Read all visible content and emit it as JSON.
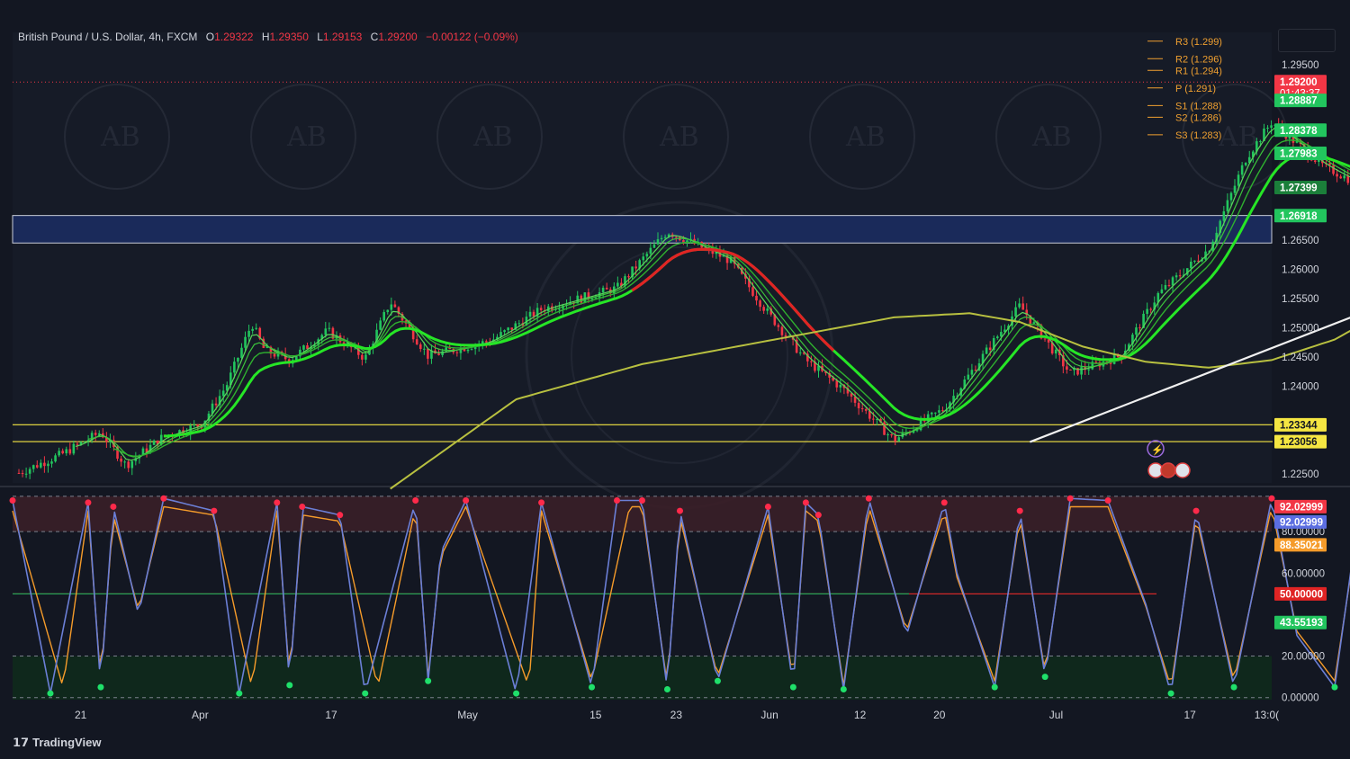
{
  "header": {
    "symbol": "British Pound / U.S. Dollar, 4h, FXCM",
    "open_label": "O",
    "open": "1.29322",
    "high_label": "H",
    "high": "1.29350",
    "low_label": "L",
    "low": "1.29153",
    "close_label": "C",
    "close": "1.29200",
    "change": "−0.00122 (−0.09%)"
  },
  "branding": "TradingView",
  "colors": {
    "bg": "#131722",
    "down": "#f23645",
    "up": "#22c55e",
    "zone": "#1a2a5a",
    "ema_green": "#26e626",
    "ema_red": "#e02424",
    "ma_slow": "#b8c040",
    "pivot": "#f0a030",
    "stoch_k": "#6b7fd6",
    "stoch_d": "#f59b2a"
  },
  "chart_data": [
    {
      "type": "line",
      "title": "British Pound / U.S. Dollar, 4h, FXCM",
      "x_ticks": [
        "21",
        "Apr",
        "17",
        "May",
        "15",
        "23",
        "Jun",
        "12",
        "20",
        "Jul",
        "17",
        "13:0("
      ],
      "y_ticks": [
        "1.29500",
        "1.26500",
        "1.26000",
        "1.25500",
        "1.25000",
        "1.24500",
        "1.24000",
        "1.22500"
      ],
      "ylim": [
        1.2235,
        1.3005
      ],
      "series": [
        {
          "role": "price",
          "x": [
            0.005,
            0.04,
            0.07,
            0.09,
            0.12,
            0.15,
            0.17,
            0.19,
            0.2,
            0.22,
            0.25,
            0.28,
            0.3,
            0.33,
            0.38,
            0.42,
            0.48,
            0.52,
            0.57,
            0.6,
            0.63,
            0.66,
            0.7,
            0.74,
            0.8,
            0.84,
            0.88,
            0.91,
            0.95,
            0.98,
            1.0,
            1.04,
            1.07,
            1.1,
            1.14,
            1.18,
            1.22,
            1.26,
            1.27,
            1.28
          ],
          "values": [
            1.2252,
            1.2285,
            1.2322,
            1.2265,
            1.2315,
            1.2335,
            1.2402,
            1.2508,
            1.2462,
            1.2445,
            1.2495,
            1.2448,
            1.2545,
            1.2452,
            1.2478,
            1.2532,
            1.2568,
            1.2665,
            1.2615,
            1.2525,
            1.2445,
            1.2395,
            1.2308,
            1.2362,
            1.2538,
            1.2422,
            1.2452,
            1.2558,
            1.2635,
            1.2792,
            1.2852,
            1.2778,
            1.2745,
            1.2758,
            1.2612,
            1.2705,
            1.2778,
            1.2898,
            1.2955,
            1.292
          ]
        },
        {
          "role": "ma-slow",
          "x": [
            0.3,
            0.4,
            0.5,
            0.6,
            0.7,
            0.76,
            0.8,
            0.85,
            0.9,
            0.95,
            1.0,
            1.05,
            1.1,
            1.15,
            1.2,
            1.3
          ],
          "values": [
            1.2225,
            1.2378,
            1.2438,
            1.2478,
            1.2518,
            1.2525,
            1.251,
            1.2468,
            1.2442,
            1.2432,
            1.2445,
            1.248,
            1.254,
            1.263,
            1.269,
            1.274
          ]
        }
      ],
      "horizontal_levels": [
        1.292,
        1.28887,
        1.28378,
        1.27983,
        1.27399,
        1.26918,
        1.23344,
        1.23056
      ],
      "price_labels": [
        {
          "text": "1.29200",
          "sub": "01:43:37",
          "color": "#f23645"
        },
        {
          "text": "1.28887",
          "color": "#22c55e"
        },
        {
          "text": "1.28378",
          "color": "#22c55e"
        },
        {
          "text": "1.27983",
          "color": "#22c55e"
        },
        {
          "text": "1.27399",
          "color": "#1b7f3a"
        },
        {
          "text": "1.26918",
          "color": "#22c55e"
        },
        {
          "text": "1.23344",
          "color": "#f5e642",
          "dark": true
        },
        {
          "text": "1.23056",
          "color": "#f5e642",
          "dark": true
        }
      ],
      "zone": {
        "y_high": 1.2692,
        "y_low": 1.2645
      },
      "trendline": {
        "from": [
          0.808,
          1.2305
        ],
        "to": [
          1.41,
          1.2808
        ]
      },
      "pivots": [
        {
          "label": "R3 (1.299)",
          "value": 1.299
        },
        {
          "label": "R2 (1.296)",
          "value": 1.296
        },
        {
          "label": "R1 (1.294)",
          "value": 1.294
        },
        {
          "label": "P (1.291)",
          "value": 1.291
        },
        {
          "label": "S1 (1.288)",
          "value": 1.288
        },
        {
          "label": "S2 (1.286)",
          "value": 1.286
        },
        {
          "label": "S3 (1.283)",
          "value": 1.283
        }
      ]
    },
    {
      "type": "line",
      "title": "",
      "y_ticks": [
        "80.00000",
        "60.00000",
        "20.00000",
        "0.00000"
      ],
      "ylim": [
        -1,
        100
      ],
      "levels": [
        80,
        50,
        20
      ],
      "value_labels": [
        {
          "text": "92.02999",
          "color": "#f23645"
        },
        {
          "text": "92.02999",
          "color": "#5b6ee1"
        },
        {
          "text": "88.35021",
          "color": "#f59b2a"
        },
        {
          "text": "50.00000",
          "color": "#e02424"
        },
        {
          "text": "43.55193",
          "color": "#22c55e"
        }
      ],
      "series": [
        {
          "role": "%K",
          "x": [
            0.0,
            0.03,
            0.06,
            0.07,
            0.08,
            0.1,
            0.12,
            0.16,
            0.18,
            0.21,
            0.22,
            0.23,
            0.26,
            0.28,
            0.32,
            0.33,
            0.34,
            0.36,
            0.4,
            0.42,
            0.46,
            0.48,
            0.5,
            0.52,
            0.53,
            0.56,
            0.6,
            0.62,
            0.63,
            0.64,
            0.66,
            0.68,
            0.71,
            0.74,
            0.75,
            0.78,
            0.8,
            0.82,
            0.84,
            0.87,
            0.9,
            0.92,
            0.94,
            0.97,
            1.0,
            1.02,
            1.05,
            1.07,
            1.1,
            1.12,
            1.15,
            1.18,
            1.21,
            1.23,
            1.25,
            1.27,
            1.28
          ],
          "values": [
            95,
            2,
            94,
            5,
            92,
            40,
            96,
            90,
            2,
            94,
            6,
            92,
            88,
            2,
            95,
            8,
            70,
            95,
            2,
            94,
            5,
            95,
            95,
            4,
            90,
            8,
            92,
            5,
            94,
            88,
            4,
            96,
            30,
            94,
            60,
            5,
            90,
            10,
            96,
            95,
            45,
            2,
            90,
            5,
            96,
            30,
            5,
            92,
            10,
            60,
            92,
            35,
            95,
            15,
            42,
            60,
            92
          ]
        },
        {
          "role": "%D",
          "x": [
            0.0,
            0.04,
            0.06,
            0.07,
            0.08,
            0.1,
            0.12,
            0.16,
            0.19,
            0.21,
            0.22,
            0.23,
            0.26,
            0.29,
            0.32,
            0.33,
            0.34,
            0.36,
            0.41,
            0.42,
            0.46,
            0.49,
            0.5,
            0.52,
            0.53,
            0.56,
            0.6,
            0.62,
            0.63,
            0.64,
            0.66,
            0.68,
            0.71,
            0.74,
            0.75,
            0.78,
            0.8,
            0.82,
            0.84,
            0.87,
            0.9,
            0.92,
            0.94,
            0.97,
            1.0,
            1.02,
            1.05,
            1.07,
            1.1,
            1.12,
            1.15,
            1.18,
            1.21,
            1.23,
            1.25,
            1.27,
            1.28
          ],
          "values": [
            90,
            5,
            90,
            8,
            88,
            42,
            92,
            88,
            5,
            90,
            9,
            88,
            85,
            5,
            92,
            10,
            68,
            92,
            5,
            90,
            8,
            92,
            92,
            6,
            87,
            10,
            88,
            8,
            90,
            85,
            6,
            92,
            32,
            90,
            58,
            8,
            87,
            12,
            92,
            92,
            44,
            5,
            87,
            8,
            92,
            32,
            8,
            88,
            12,
            58,
            88,
            36,
            92,
            18,
            44,
            58,
            88
          ]
        }
      ]
    }
  ]
}
